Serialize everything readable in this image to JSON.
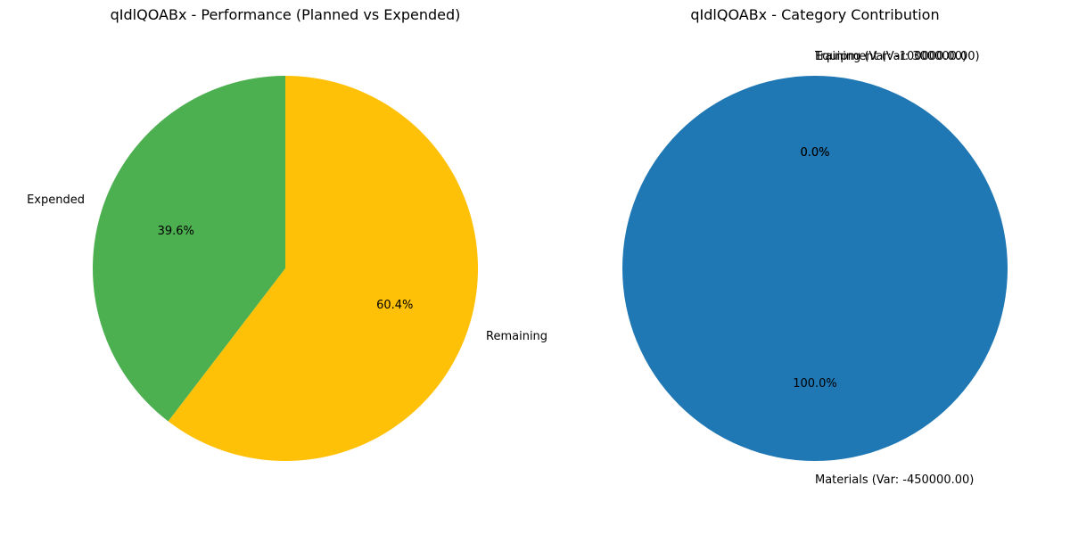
{
  "chart_data": [
    {
      "type": "pie",
      "title": "qIdlQOABx - Performance (Planned vs Expended)",
      "slices": [
        {
          "label": "Expended",
          "value": 39.6,
          "pct_label": "39.6%",
          "color": "#4caf50"
        },
        {
          "label": "Remaining",
          "value": 60.4,
          "pct_label": "60.4%",
          "color": "#ffc107"
        }
      ]
    },
    {
      "type": "pie",
      "title": "qIdlQOABx - Category Contribution",
      "slices": [
        {
          "label": "Materials (Var: -450000.00)",
          "value": 100.0,
          "pct_label": "100.0%",
          "color": "#1f77b4"
        },
        {
          "label": "Equipment (Var: 300000.00)",
          "value": 0.0,
          "pct_label": "0.0%",
          "color": "#ff7f0e"
        },
        {
          "label": "Training (Var: -100000.00)",
          "value": 0.0,
          "pct_label": "0.0%",
          "color": "#2ca02c"
        }
      ]
    }
  ]
}
